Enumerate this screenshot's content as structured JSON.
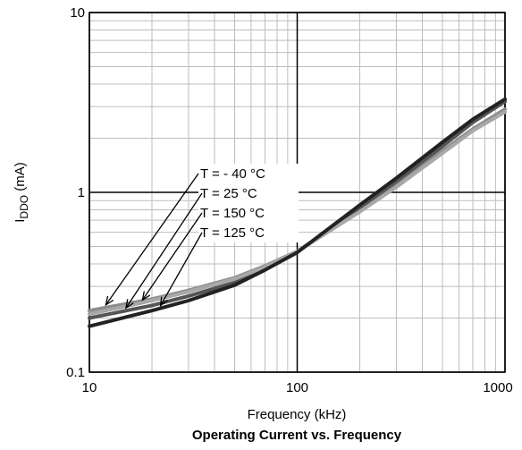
{
  "chart_data": {
    "type": "line",
    "title": "Operating Current vs. Frequency",
    "xlabel": "Frequency (kHz)",
    "ylabel_main": "I",
    "ylabel_sub": "DDO",
    "ylabel_unit": " (mA)",
    "xscale": "log",
    "yscale": "log",
    "xlim": [
      10,
      1000
    ],
    "ylim": [
      0.1,
      10
    ],
    "x_ticks": [
      {
        "value": 10,
        "label": "10"
      },
      {
        "value": 100,
        "label": "100"
      },
      {
        "value": 1000,
        "label": "1000"
      }
    ],
    "y_ticks": [
      {
        "value": 0.1,
        "label": "0.1"
      },
      {
        "value": 1,
        "label": "1"
      },
      {
        "value": 10,
        "label": "10"
      }
    ],
    "grid": true,
    "series": [
      {
        "name": "T = - 40 °C",
        "color": "#8c8c8c",
        "x": [
          10,
          20,
          30,
          50,
          70,
          100,
          200,
          300,
          500,
          700,
          1000
        ],
        "y": [
          0.22,
          0.255,
          0.285,
          0.335,
          0.39,
          0.47,
          0.8,
          1.1,
          1.7,
          2.25,
          2.9
        ]
      },
      {
        "name": "T = 25 °C",
        "color": "#555555",
        "x": [
          10,
          20,
          30,
          50,
          70,
          100,
          200,
          300,
          500,
          700,
          1000
        ],
        "y": [
          0.2,
          0.235,
          0.265,
          0.315,
          0.375,
          0.465,
          0.82,
          1.15,
          1.8,
          2.45,
          3.2
        ]
      },
      {
        "name": "T = 150 °C",
        "color": "#a8a8a8",
        "x": [
          10,
          20,
          30,
          50,
          70,
          100,
          200,
          300,
          500,
          700,
          1000
        ],
        "y": [
          0.21,
          0.25,
          0.28,
          0.33,
          0.385,
          0.468,
          0.78,
          1.07,
          1.65,
          2.2,
          2.8
        ]
      },
      {
        "name": "T = 125 °C",
        "color": "#222222",
        "x": [
          10,
          20,
          30,
          50,
          70,
          100,
          200,
          300,
          500,
          700,
          1000
        ],
        "y": [
          0.18,
          0.22,
          0.25,
          0.305,
          0.37,
          0.463,
          0.85,
          1.2,
          1.9,
          2.55,
          3.3
        ]
      }
    ]
  }
}
